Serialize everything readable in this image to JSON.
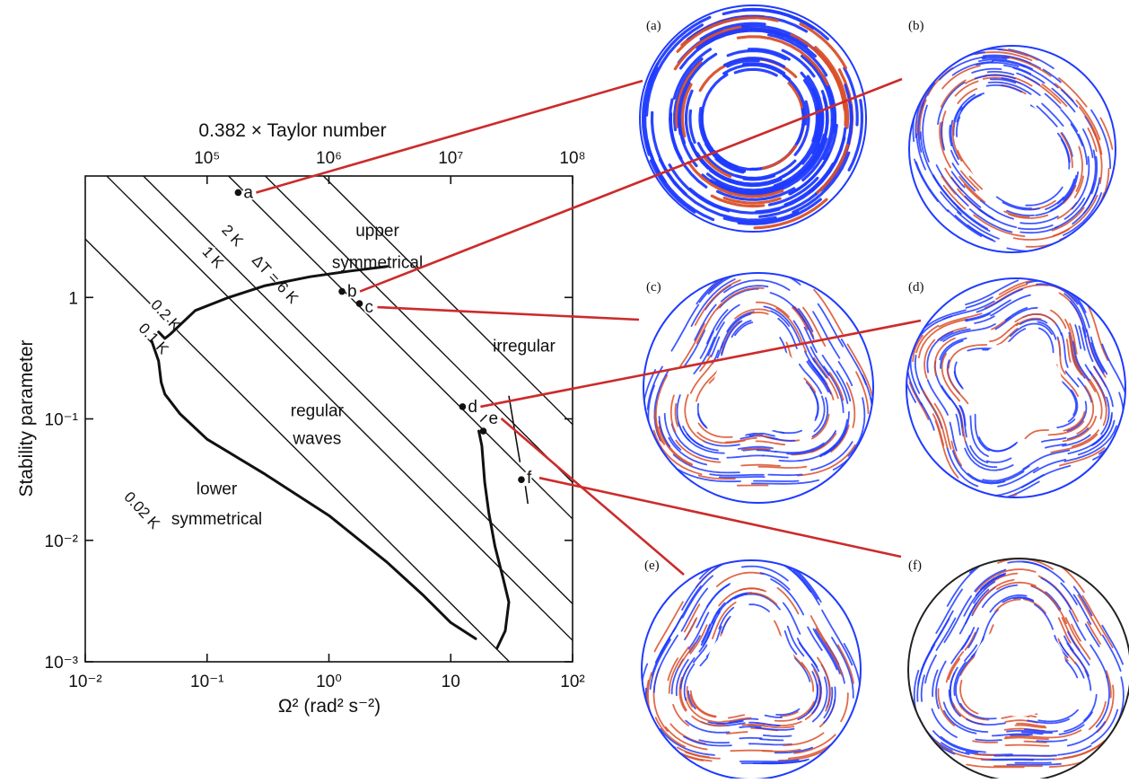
{
  "chart_data": {
    "type": "regime-diagram",
    "top_axis": {
      "label": "0.382 × Taylor number",
      "ticks": [
        {
          "value": 100000,
          "label": "10⁵"
        },
        {
          "value": 1000000,
          "label": "10⁶"
        },
        {
          "value": 10000000,
          "label": "10⁷"
        },
        {
          "value": 100000000,
          "label": "10⁸"
        }
      ]
    },
    "x_axis": {
      "label": "Ω² (rad² s⁻²)",
      "scale": "log",
      "range": [
        0.01,
        100
      ],
      "ticks": [
        {
          "value": 0.01,
          "label": "10⁻²"
        },
        {
          "value": 0.1,
          "label": "10⁻¹"
        },
        {
          "value": 1,
          "label": "10⁰"
        },
        {
          "value": 10,
          "label": "10"
        },
        {
          "value": 100,
          "label": "10²"
        }
      ]
    },
    "y_axis": {
      "label": "Stability parameter",
      "scale": "log",
      "range": [
        0.001,
        10
      ],
      "ticks": [
        {
          "value": 1,
          "label": "1"
        },
        {
          "value": 0.1,
          "label": "10⁻¹"
        },
        {
          "value": 0.01,
          "label": "10⁻²"
        },
        {
          "value": 0.001,
          "label": "10⁻³"
        }
      ]
    },
    "isotherms": [
      {
        "label": "0.02 K",
        "ratio": 0.0303
      },
      {
        "label": "0.1 K",
        "ratio": 0.15
      },
      {
        "label": "0.2 K",
        "ratio": 0.3
      },
      {
        "label": "1 K",
        "ratio": 1.5
      },
      {
        "label": "2 K",
        "ratio": 3.0
      },
      {
        "label": "ΔT = 6 K",
        "ratio": 9.0
      }
    ],
    "regime_labels": [
      {
        "text": "upper",
        "x": 2.5,
        "y": 3.2
      },
      {
        "text": "symmetrical",
        "x": 2.5,
        "y": 1.75
      },
      {
        "text": "irregular",
        "x": 40,
        "y": 0.36
      },
      {
        "text": "regular",
        "x": 0.8,
        "y": 0.105
      },
      {
        "text": "waves",
        "x": 0.8,
        "y": 0.062
      },
      {
        "text": "lower",
        "x": 0.12,
        "y": 0.024
      },
      {
        "text": "symmetrical",
        "x": 0.12,
        "y": 0.0135
      }
    ],
    "points": [
      {
        "label": "a",
        "x": 0.18,
        "y": 7.3
      },
      {
        "label": "b",
        "x": 1.28,
        "y": 1.12
      },
      {
        "label": "c",
        "x": 1.78,
        "y": 0.89
      },
      {
        "label": "d",
        "x": 12.5,
        "y": 0.126
      },
      {
        "label": "e",
        "x": 18.5,
        "y": 0.0794
      },
      {
        "label": "f",
        "x": 38,
        "y": 0.0316
      }
    ],
    "boundary_curves": [
      {
        "name": "lower-symmetrical transition",
        "points": [
          [
            0.035,
            0.44
          ],
          [
            0.04,
            0.3
          ],
          [
            0.042,
            0.2
          ],
          [
            0.045,
            0.16
          ],
          [
            0.06,
            0.11
          ],
          [
            0.1,
            0.068
          ],
          [
            0.3,
            0.035
          ],
          [
            1,
            0.016
          ],
          [
            3,
            0.0066
          ],
          [
            6,
            0.0035
          ],
          [
            10,
            0.0021
          ],
          [
            16,
            0.00155
          ]
        ]
      },
      {
        "name": "upper-symmetrical transition",
        "points": [
          [
            0.04,
            0.52
          ],
          [
            0.045,
            0.46
          ],
          [
            0.05,
            0.5
          ],
          [
            0.08,
            0.78
          ],
          [
            0.15,
            1.0
          ],
          [
            0.3,
            1.25
          ],
          [
            0.7,
            1.48
          ],
          [
            1.5,
            1.65
          ],
          [
            3,
            1.8
          ]
        ]
      },
      {
        "name": "irregular transition",
        "points": [
          [
            17,
            0.0794
          ],
          [
            18,
            0.06
          ],
          [
            19,
            0.03
          ],
          [
            20.5,
            0.017
          ],
          [
            23,
            0.009
          ],
          [
            27,
            0.0048
          ],
          [
            30,
            0.0031
          ],
          [
            28,
            0.0018
          ],
          [
            24,
            0.0013
          ]
        ]
      }
    ],
    "annotation_ticks": [
      {
        "points": [
          [
            17.5,
            0.095
          ],
          [
            19.8,
            0.108
          ]
        ]
      },
      {
        "points": [
          [
            30,
            0.155
          ],
          [
            37,
            0.044
          ]
        ]
      },
      {
        "points": [
          [
            41,
            0.028
          ],
          [
            43,
            0.02
          ]
        ]
      },
      {
        "points": [
          [
            44,
            0.0306
          ],
          [
            46,
            0.0298
          ]
        ]
      }
    ]
  },
  "panels": [
    {
      "label": "(a)",
      "pattern": "axisymmetric"
    },
    {
      "label": "(b)",
      "pattern": "wavenumber-2"
    },
    {
      "label": "(c)",
      "pattern": "wavenumber-3"
    },
    {
      "label": "(d)",
      "pattern": "wavenumber-4"
    },
    {
      "label": "(e)",
      "pattern": "irregular-waves"
    },
    {
      "label": "(f)",
      "pattern": "irregular"
    }
  ],
  "colors": {
    "frame": "#111111",
    "connector": "#cc2b2b",
    "flow_blue": "#1f3bff",
    "flow_red": "#d9502a"
  }
}
